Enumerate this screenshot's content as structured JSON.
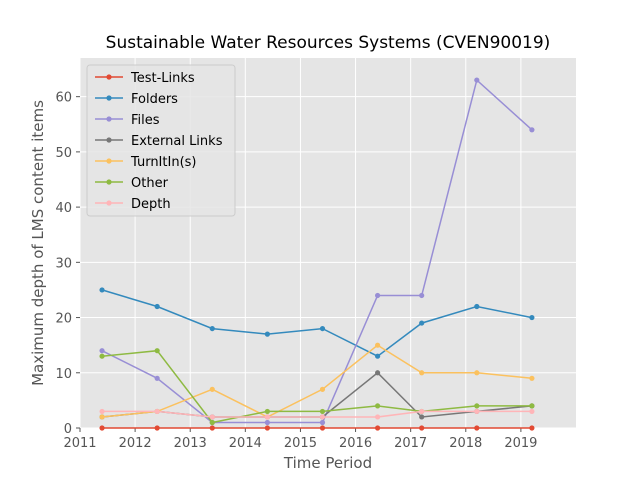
{
  "chart_data": {
    "type": "line",
    "title": "Sustainable Water Resources Systems (CVEN90019)",
    "xlabel": "Time Period",
    "ylabel": "Maximum depth of LMS content items",
    "xlim": [
      2011,
      2020
    ],
    "ylim": [
      0,
      67
    ],
    "xticks": [
      2011,
      2012,
      2013,
      2014,
      2015,
      2016,
      2017,
      2018,
      2019
    ],
    "yticks": [
      0,
      10,
      20,
      30,
      40,
      50,
      60
    ],
    "grid": true,
    "legend_position": "top-left",
    "x": [
      2011.4,
      2012.4,
      2013.4,
      2014.4,
      2015.4,
      2016.4,
      2017.2,
      2018.2,
      2019.2
    ],
    "series": [
      {
        "name": "Test-Links",
        "color": "#e24a33",
        "values": [
          0,
          0,
          0,
          0,
          0,
          0,
          0,
          0,
          0
        ]
      },
      {
        "name": "Folders",
        "color": "#348abd",
        "values": [
          25,
          22,
          18,
          17,
          18,
          13,
          19,
          22,
          20
        ]
      },
      {
        "name": "Files",
        "color": "#988ed5",
        "values": [
          14,
          9,
          1,
          1,
          1,
          24,
          24,
          63,
          54
        ]
      },
      {
        "name": "External Links",
        "color": "#777777",
        "values": [
          2,
          3,
          2,
          2,
          2,
          10,
          2,
          3,
          4
        ]
      },
      {
        "name": "TurnItIn(s)",
        "color": "#fbc15e",
        "values": [
          2,
          3,
          7,
          2,
          7,
          15,
          10,
          10,
          9
        ]
      },
      {
        "name": "Other",
        "color": "#8eba42",
        "values": [
          13,
          14,
          1,
          3,
          3,
          4,
          3,
          4,
          4
        ]
      },
      {
        "name": "Depth",
        "color": "#ffb5b8",
        "values": [
          3,
          3,
          2,
          2,
          2,
          2,
          3,
          3,
          3
        ]
      }
    ]
  }
}
